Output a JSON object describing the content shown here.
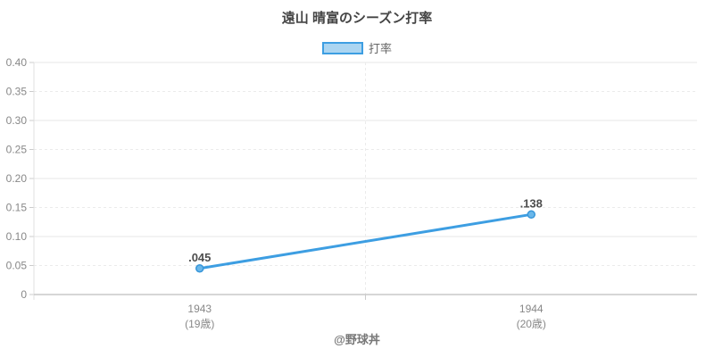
{
  "chart_data": {
    "type": "line",
    "title": "遠山 晴富のシーズン打率",
    "legend_position": "top",
    "grid": true,
    "categories": [
      "1943",
      "1944"
    ],
    "category_sublabels": [
      "(19歳)",
      "(20歳)"
    ],
    "series": [
      {
        "name": "打率",
        "values": [
          0.045,
          0.138
        ],
        "point_labels": [
          ".045",
          ".138"
        ]
      }
    ],
    "xlabel": "",
    "ylabel": "",
    "ylim": [
      0,
      0.4
    ],
    "ytick_step": 0.05,
    "ytick_labels": [
      "0",
      "0.05",
      "0.10",
      "0.15",
      "0.20",
      "0.25",
      "0.30",
      "0.35",
      "0.40"
    ]
  },
  "watermark": "@野球丼",
  "colors": {
    "line": "#3d9ee2",
    "point_fill": "#6ab7ea",
    "point_border": "#3796d9",
    "legend_swatch_fill": "#abd5f1",
    "legend_swatch_border": "#3d9ee2",
    "title_text": "#444444",
    "axis_text": "#888888",
    "value_label_text": "#4d4d4d",
    "legend_text": "#666666",
    "watermark_text": "#777777",
    "grid_major": "#e7e7e7",
    "grid_minor": "#ebebeb",
    "axis_line": "#c8c8c8",
    "y_axis_line": "#e0e0e0",
    "tick": "#cccccc"
  }
}
